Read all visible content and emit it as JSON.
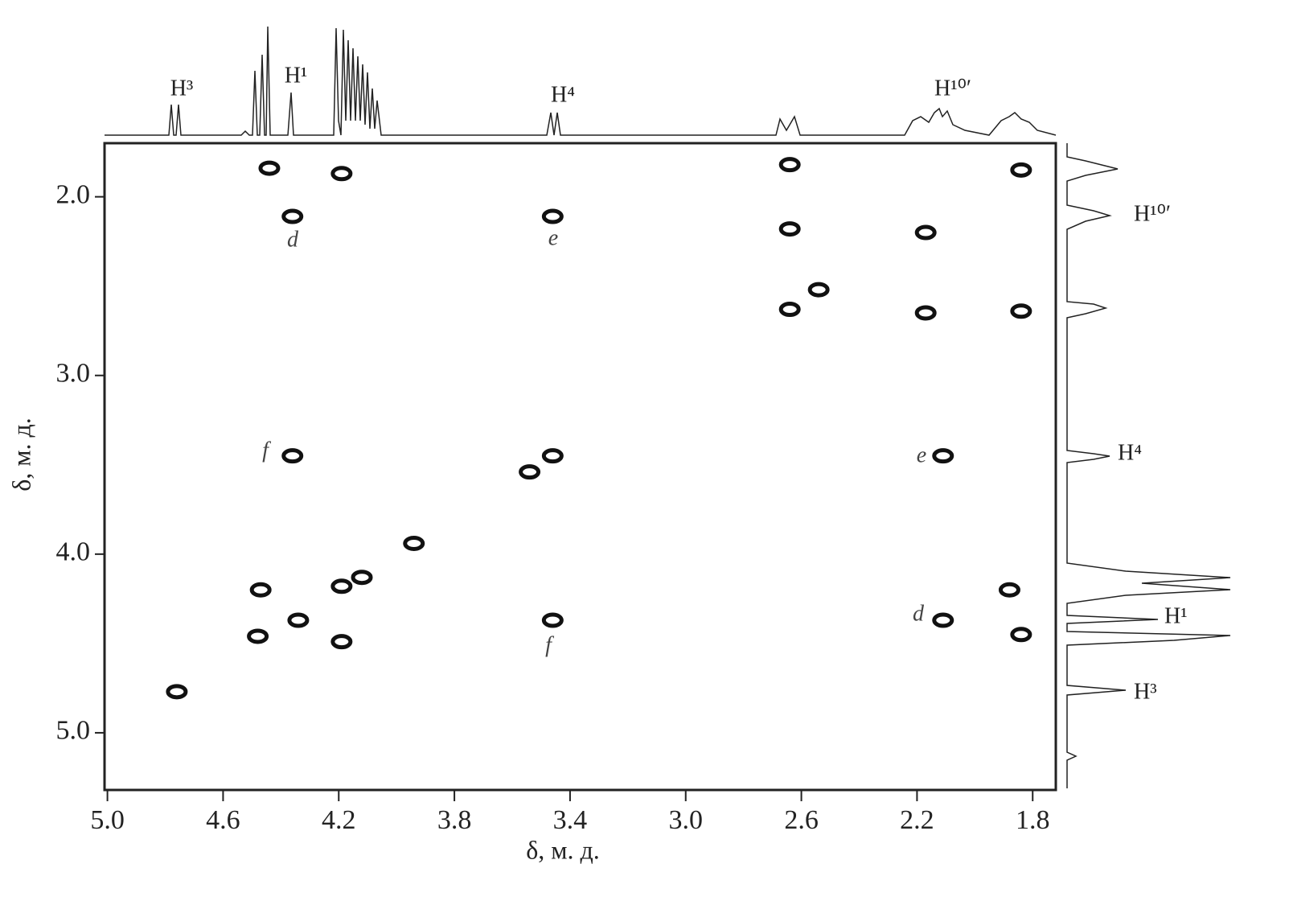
{
  "chart_data": {
    "type": "scatter",
    "x_label": "δ, м. д.",
    "y_label": "δ, м. д.",
    "x": [
      4.44,
      4.19,
      4.36,
      3.46,
      2.64,
      2.64,
      2.64,
      2.17,
      1.84,
      1.84,
      2.17,
      4.36,
      3.46,
      2.11,
      3.54,
      3.94,
      4.12,
      4.19,
      4.47,
      4.19,
      4.34,
      4.48,
      3.46,
      2.11,
      1.88,
      1.84,
      4.76,
      2.54
    ],
    "values": [
      1.84,
      1.87,
      2.11,
      2.11,
      1.82,
      2.18,
      2.63,
      2.65,
      2.64,
      1.85,
      2.2,
      3.45,
      3.45,
      3.45,
      3.54,
      3.94,
      4.13,
      4.18,
      4.2,
      4.49,
      4.37,
      4.46,
      4.37,
      4.37,
      4.2,
      4.45,
      4.77,
      2.52
    ],
    "color": "#111111",
    "xlim": [
      5.01,
      1.72
    ],
    "ylim": [
      1.7,
      5.32
    ],
    "xticks": [
      {
        "value": 5,
        "label": "5.0"
      },
      4.6,
      4.2,
      3.8,
      3.4,
      {
        "value": 3,
        "label": "3.0"
      },
      2.6,
      2.2,
      1.8
    ],
    "yticks": [
      {
        "value": 2,
        "label": "2.0"
      },
      {
        "value": 3,
        "label": "3.0"
      },
      {
        "value": 4,
        "label": "4.0"
      },
      {
        "value": 5,
        "label": "5.0"
      }
    ],
    "top_labels": [
      "H³",
      "H¹",
      "H⁴",
      "H¹⁰′"
    ],
    "side_labels": [
      "H¹⁰′",
      "H⁴",
      "H¹",
      "H³"
    ],
    "annotations": [
      "d",
      "e",
      "f",
      "e",
      "d",
      "f"
    ]
  }
}
